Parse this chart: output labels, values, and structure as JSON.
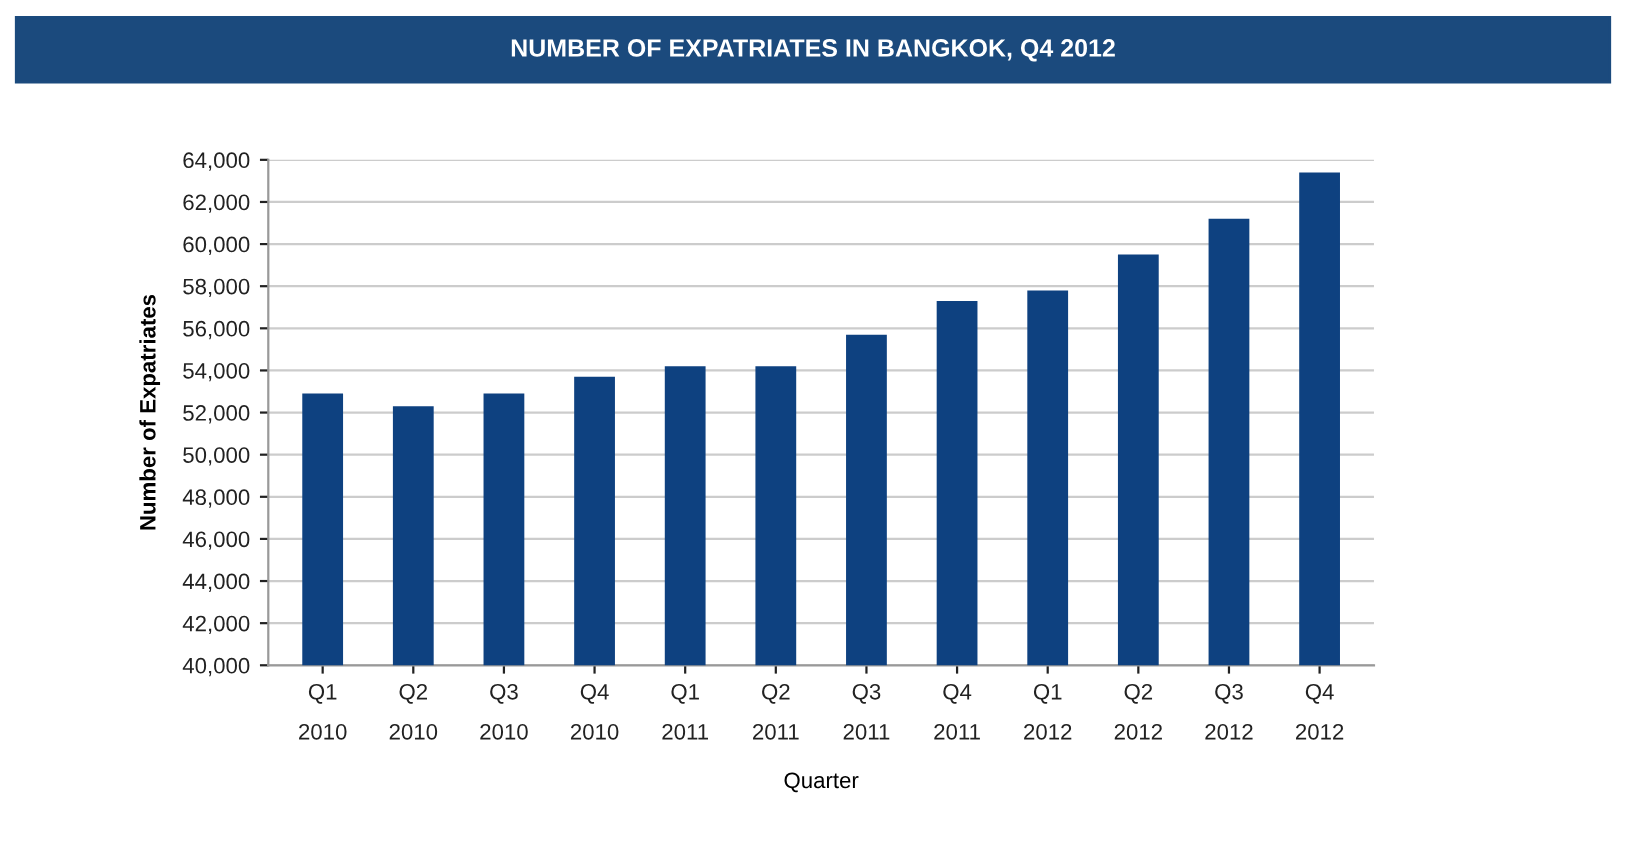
{
  "chart_data": {
    "type": "bar",
    "title": "NUMBER OF EXPATRIATES IN BANGKOK, Q4 2012",
    "xlabel": "Quarter",
    "ylabel": "Number of Expatriates",
    "categories": [
      "Q1\n2010",
      "Q2\n2010",
      "Q3\n2010",
      "Q4\n2010",
      "Q1\n2011",
      "Q2\n2011",
      "Q3\n2011",
      "Q4\n2011",
      "Q1\n2012",
      "Q2\n2012",
      "Q3\n2012",
      "Q4\n2012"
    ],
    "values": [
      52900,
      52300,
      52900,
      53700,
      54200,
      54200,
      55700,
      57300,
      57800,
      59500,
      61200,
      63400
    ],
    "color": "#0e4180",
    "ylim": [
      40000,
      64000
    ],
    "yticks": [
      {
        "value": 40000,
        "label": "40,000"
      },
      {
        "value": 42000,
        "label": "42,000"
      },
      {
        "value": 44000,
        "label": "44,000"
      },
      {
        "value": 46000,
        "label": "46,000"
      },
      {
        "value": 48000,
        "label": "48,000"
      },
      {
        "value": 50000,
        "label": "50,000"
      },
      {
        "value": 52000,
        "label": "52,000"
      },
      {
        "value": 54000,
        "label": "54,000"
      },
      {
        "value": 56000,
        "label": "56,000"
      },
      {
        "value": 58000,
        "label": "58,000"
      },
      {
        "value": 60000,
        "label": "60,000"
      },
      {
        "value": 62000,
        "label": "62,000"
      },
      {
        "value": 64000,
        "label": "64,000"
      }
    ],
    "grid": "y"
  }
}
